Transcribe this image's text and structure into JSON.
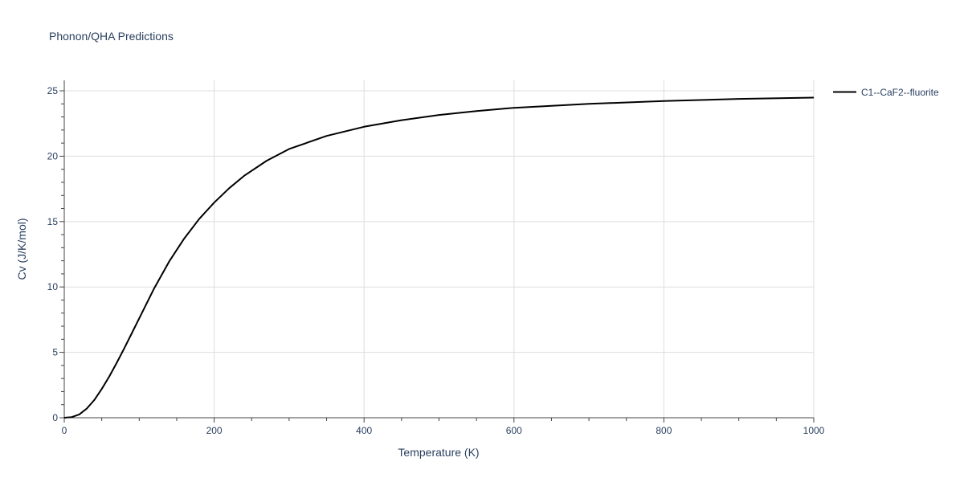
{
  "chart_data": {
    "type": "line",
    "title": "Phonon/QHA Predictions",
    "xlabel": "Temperature (K)",
    "ylabel": "Cv (J/K/mol)",
    "xlim": [
      0,
      1000
    ],
    "ylim": [
      0,
      25.8
    ],
    "x_ticks": [
      0,
      200,
      400,
      600,
      800,
      1000
    ],
    "y_ticks": [
      0,
      5,
      10,
      15,
      20,
      25
    ],
    "grid": true,
    "legend_position": "top-right",
    "series": [
      {
        "name": "C1--CaF2--fluorite",
        "color": "#000000",
        "x": [
          0,
          10,
          20,
          30,
          40,
          50,
          60,
          70,
          80,
          90,
          100,
          120,
          140,
          160,
          180,
          200,
          220,
          240,
          270,
          300,
          350,
          400,
          450,
          500,
          550,
          600,
          700,
          800,
          900,
          1000
        ],
        "y": [
          0,
          0.05,
          0.25,
          0.7,
          1.35,
          2.2,
          3.15,
          4.2,
          5.3,
          6.45,
          7.6,
          9.9,
          11.95,
          13.7,
          15.2,
          16.45,
          17.55,
          18.5,
          19.65,
          20.55,
          21.55,
          22.25,
          22.75,
          23.15,
          23.45,
          23.7,
          24.0,
          24.22,
          24.38,
          24.48
        ]
      }
    ]
  }
}
